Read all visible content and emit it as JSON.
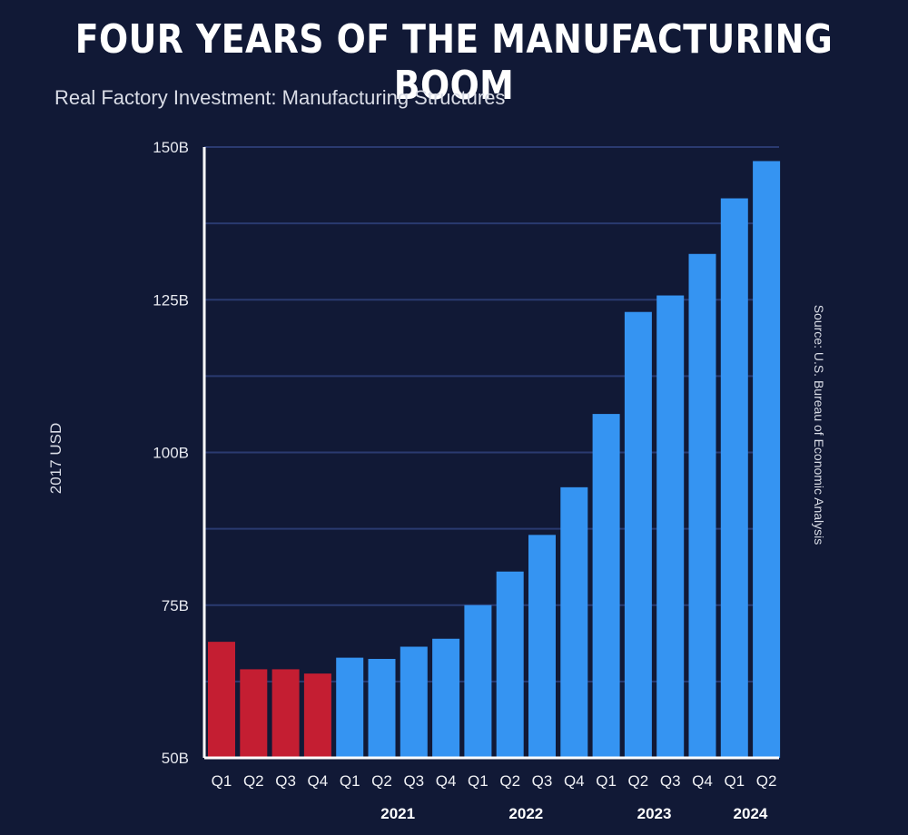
{
  "header": {
    "title": "FOUR YEARS OF THE MANUFACTURING BOOM",
    "subtitle": "Real Factory Investment: Manufacturing Structures",
    "source": "Source: U.S. Bureau of Economic Analysis"
  },
  "colors": {
    "background": "#111936",
    "highlight_bar": "#c41e32",
    "main_bar": "#3594f2",
    "gridline": "#2a3a70"
  },
  "chart_data": {
    "type": "bar",
    "title": "FOUR YEARS OF THE MANUFACTURING BOOM",
    "subtitle": "Real Factory Investment: Manufacturing Structures",
    "xlabel": "",
    "ylabel": "2017 USD",
    "ylim": [
      50,
      150
    ],
    "yticks": [
      50,
      75,
      100,
      125,
      150
    ],
    "ytick_labels": [
      "50B",
      "75B",
      "100B",
      "125B",
      "150B"
    ],
    "grid": true,
    "categories": [
      "Q1",
      "Q2",
      "Q3",
      "Q4",
      "Q1",
      "Q2",
      "Q3",
      "Q4",
      "Q1",
      "Q2",
      "Q3",
      "Q4",
      "Q1",
      "Q2",
      "Q3",
      "Q4",
      "Q1",
      "Q2"
    ],
    "year_labels": [
      {
        "label": "2021",
        "start": 4,
        "end": 7
      },
      {
        "label": "2022",
        "start": 8,
        "end": 11
      },
      {
        "label": "2023",
        "start": 12,
        "end": 15
      },
      {
        "label": "2024",
        "start": 16,
        "end": 17
      }
    ],
    "values": [
      69,
      64.5,
      64.5,
      63.8,
      66.4,
      66.2,
      68.2,
      69.5,
      75,
      80.5,
      86.5,
      94.3,
      106.3,
      123,
      125.7,
      132.5,
      141.6,
      147.7
    ],
    "bar_colors": [
      "#c41e32",
      "#c41e32",
      "#c41e32",
      "#c41e32",
      "#3594f2",
      "#3594f2",
      "#3594f2",
      "#3594f2",
      "#3594f2",
      "#3594f2",
      "#3594f2",
      "#3594f2",
      "#3594f2",
      "#3594f2",
      "#3594f2",
      "#3594f2",
      "#3594f2",
      "#3594f2"
    ],
    "source": "Source: U.S. Bureau of Economic Analysis"
  }
}
